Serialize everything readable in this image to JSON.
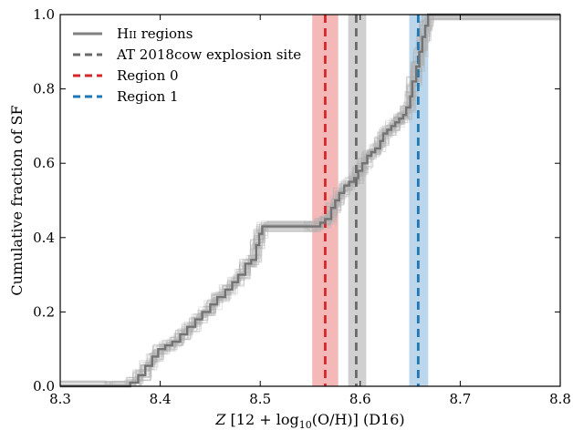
{
  "chart_data": {
    "type": "line",
    "xlabel": "Z [12 + log10(O/H)] (D16)",
    "ylabel": "Cumulative fraction of SF",
    "xlim": [
      8.3,
      8.8
    ],
    "ylim": [
      0.0,
      1.0
    ],
    "xticks": [
      "8.3",
      "8.4",
      "8.5",
      "8.6",
      "8.7",
      "8.8"
    ],
    "yticks": [
      "0.0",
      "0.2",
      "0.4",
      "0.6",
      "0.8",
      "1.0"
    ],
    "grid": false,
    "legend_position": "top-left",
    "series": [
      {
        "name": "HII regions",
        "style": "step",
        "color": "#737373",
        "x": [
          8.3,
          8.35,
          8.37,
          8.378,
          8.385,
          8.392,
          8.398,
          8.405,
          8.412,
          8.42,
          8.427,
          8.435,
          8.442,
          8.45,
          8.457,
          8.465,
          8.472,
          8.478,
          8.485,
          8.491,
          8.496,
          8.499,
          8.502,
          8.55,
          8.56,
          8.565,
          8.571,
          8.575,
          8.579,
          8.584,
          8.589,
          8.594,
          8.598,
          8.602,
          8.607,
          8.611,
          8.615,
          8.62,
          8.623,
          8.627,
          8.631,
          8.635,
          8.639,
          8.643,
          8.646,
          8.65,
          8.652,
          8.656,
          8.659,
          8.662,
          8.665,
          8.668,
          8.8
        ],
        "y": [
          0.0,
          0.0,
          0.01,
          0.03,
          0.055,
          0.08,
          0.1,
          0.11,
          0.12,
          0.14,
          0.16,
          0.18,
          0.2,
          0.22,
          0.24,
          0.26,
          0.28,
          0.3,
          0.33,
          0.34,
          0.38,
          0.41,
          0.43,
          0.43,
          0.44,
          0.45,
          0.48,
          0.5,
          0.52,
          0.54,
          0.55,
          0.56,
          0.58,
          0.6,
          0.62,
          0.63,
          0.64,
          0.66,
          0.68,
          0.69,
          0.7,
          0.71,
          0.72,
          0.73,
          0.75,
          0.78,
          0.82,
          0.86,
          0.9,
          0.94,
          0.97,
          1.0,
          1.0
        ]
      },
      {
        "name": "AT 2018cow explosion site",
        "style": "dashed-vertical",
        "color": "#696969",
        "x": 8.596,
        "band": [
          8.588,
          8.606
        ]
      },
      {
        "name": "Region 0",
        "style": "dashed-vertical",
        "color": "#d62728",
        "x": 8.565,
        "band": [
          8.552,
          8.578
        ]
      },
      {
        "name": "Region 1",
        "style": "dashed-vertical",
        "color": "#1f77b4",
        "x": 8.658,
        "band": [
          8.649,
          8.668
        ]
      }
    ]
  },
  "axes": {
    "x_ticks": [
      "8.3",
      "8.4",
      "8.5",
      "8.6",
      "8.7",
      "8.8"
    ],
    "y_ticks": [
      "0.0",
      "0.2",
      "0.4",
      "0.6",
      "0.8",
      "1.0"
    ]
  },
  "legend": {
    "items": [
      {
        "label": "HII regions",
        "color": "#808080"
      },
      {
        "label": "AT 2018cow explosion site",
        "color": "#696969"
      },
      {
        "label": "Region 0",
        "color": "#d62728"
      },
      {
        "label": "Region 1",
        "color": "#1f77b4"
      }
    ]
  },
  "colors": {
    "band_red": "#f0a0a0",
    "band_gray": "#c0c0c0",
    "band_blue": "#a6c8e6",
    "mc_draws": "#b0b0b0"
  }
}
